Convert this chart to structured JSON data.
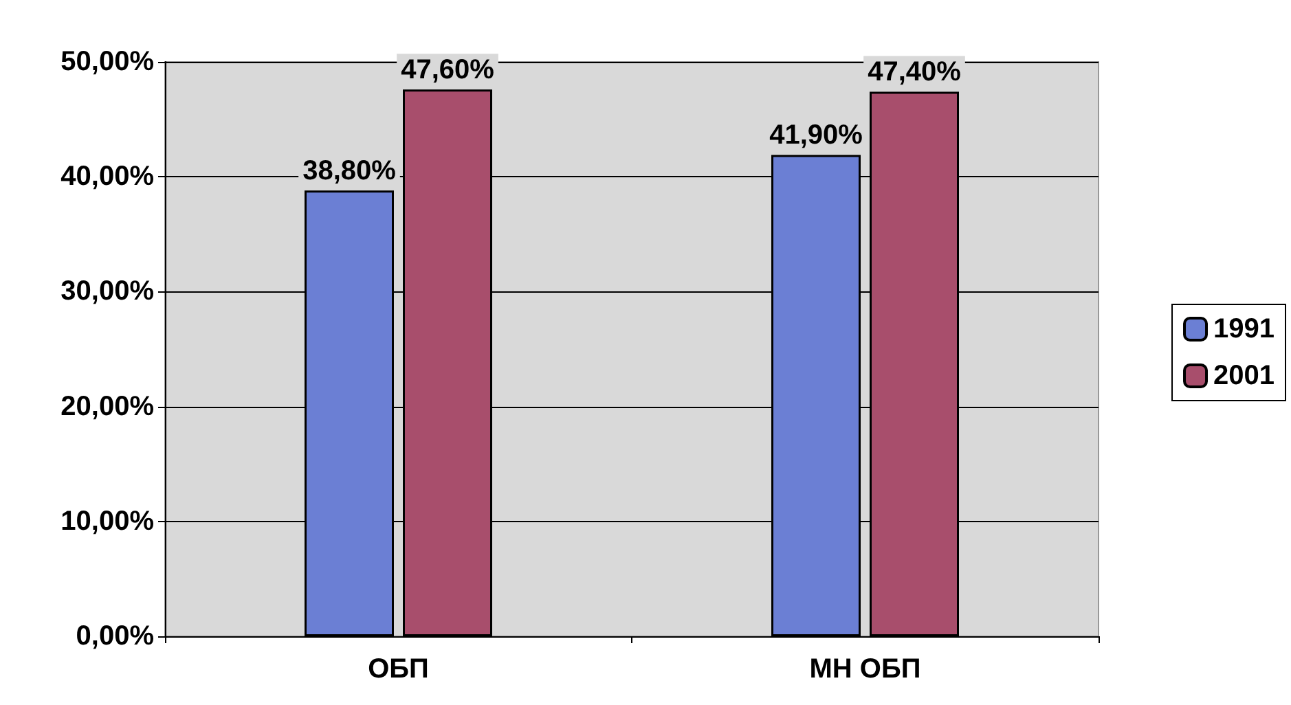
{
  "chart_data": {
    "type": "bar",
    "categories": [
      "ОБП",
      "МН ОБП"
    ],
    "series": [
      {
        "name": "1991",
        "color": "#6b7fd4",
        "values": [
          38.8,
          41.9
        ],
        "value_labels": [
          "38,80%",
          "41,90%"
        ]
      },
      {
        "name": "2001",
        "color": "#a84e6c",
        "values": [
          47.6,
          47.4
        ],
        "value_labels": [
          "47,60%",
          "47,40%"
        ]
      }
    ],
    "ylim": [
      0,
      50
    ],
    "yticks": [
      {
        "value": 0,
        "label": "0,00%"
      },
      {
        "value": 10,
        "label": "10,00%"
      },
      {
        "value": 20,
        "label": "20,00%"
      },
      {
        "value": 30,
        "label": "30,00%"
      },
      {
        "value": 40,
        "label": "40,00%"
      },
      {
        "value": 50,
        "label": "50,00%"
      }
    ],
    "grid": "y",
    "legend": "right"
  }
}
